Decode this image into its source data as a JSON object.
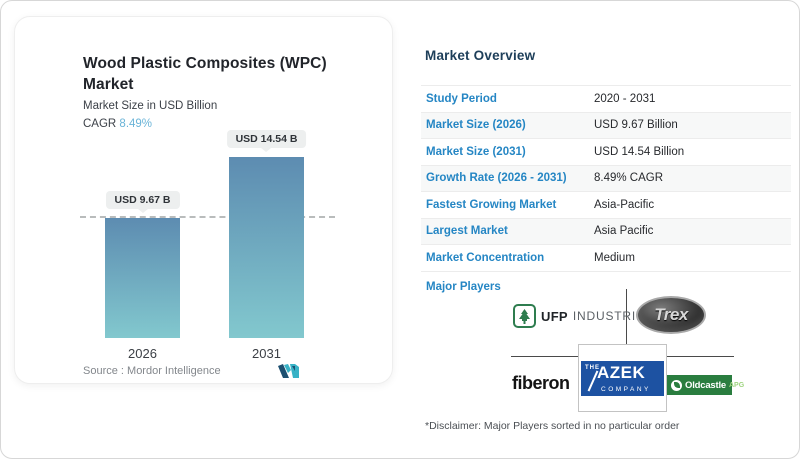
{
  "card": {
    "title": "Wood Plastic Composites (WPC) Market",
    "subtitle": "Market Size in USD Billion",
    "cagr_label": "CAGR ",
    "cagr_value": "8.49%",
    "source_label": "Source :  ",
    "source_value": "Mordor Intelligence"
  },
  "chart_data": {
    "type": "bar",
    "title": "Wood Plastic Composites (WPC) Market",
    "ylabel": "Market Size in USD Billion",
    "categories": [
      "2026",
      "2031"
    ],
    "values": [
      9.67,
      14.54
    ],
    "value_labels": [
      "USD 9.67 B",
      "USD 14.54 B"
    ],
    "ylim": [
      0,
      14.54
    ],
    "reference_line_at": 9.67,
    "grid": false,
    "legend": "none",
    "bar_color_top": "#5d8cb1",
    "bar_color_bottom": "#82c8ce"
  },
  "overview": {
    "title": "Market Overview",
    "rows": [
      {
        "label": "Study Period",
        "value": "2020 - 2031"
      },
      {
        "label": "Market Size (2026)",
        "value": "USD 9.67 Billion"
      },
      {
        "label": "Market Size (2031)",
        "value": "USD 14.54 Billion"
      },
      {
        "label": "Growth Rate (2026 - 2031)",
        "value": "8.49% CAGR"
      },
      {
        "label": "Fastest Growing Market",
        "value": "Asia-Pacific"
      },
      {
        "label": "Largest Market",
        "value": "Asia Pacific"
      },
      {
        "label": "Market Concentration",
        "value": "Medium"
      }
    ],
    "major_players_label": "Major Players",
    "players": {
      "ufp": {
        "name": "UFP",
        "suffix": "INDUSTRIES"
      },
      "trex": {
        "name": "Trex"
      },
      "fiberon": {
        "name": "fiberon"
      },
      "azek": {
        "line1": "THE",
        "line2": "AZEK",
        "line3": "COMPANY"
      },
      "oldcastle": {
        "name": "Oldcastle",
        "suffix": "APG"
      }
    },
    "disclaimer": "*Disclaimer: Major Players sorted in no particular order"
  },
  "colors": {
    "accent_blue": "#2586c4",
    "title_navy": "#1d3e59",
    "cagr_teal": "#6ab4d8",
    "bar_top": "#5d8cb1",
    "bar_bottom": "#82c8ce",
    "azek_blue": "#1d52a2",
    "oldcastle_green": "#2a7d3f",
    "ufp_green": "#2e7d4f"
  }
}
